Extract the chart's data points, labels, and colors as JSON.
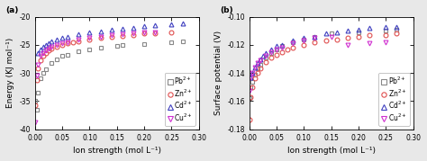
{
  "panel_a": {
    "title": "(a)",
    "xlabel": "Ion strength (mol L⁻¹)",
    "ylabel": "Energy (KJ mol⁻¹)",
    "xlim": [
      0,
      0.3
    ],
    "ylim": [
      -40,
      -20
    ],
    "yticks": [
      -40,
      -35,
      -30,
      -25,
      -20
    ],
    "xticks": [
      0.0,
      0.05,
      0.1,
      0.15,
      0.2,
      0.25,
      0.3
    ],
    "series": {
      "Pb2+": {
        "label": "Pb$^{2+}$",
        "color": "#888888",
        "marker": "s",
        "x": [
          0.001,
          0.003,
          0.005,
          0.01,
          0.015,
          0.02,
          0.03,
          0.04,
          0.05,
          0.06,
          0.08,
          0.1,
          0.12,
          0.15,
          0.16,
          0.2,
          0.25,
          0.27
        ],
        "y": [
          -35.0,
          -36.5,
          -33.5,
          -31.0,
          -30.0,
          -29.3,
          -28.2,
          -27.5,
          -27.0,
          -26.7,
          -26.2,
          -25.8,
          -25.5,
          -25.2,
          -25.0,
          -24.8,
          -24.5,
          -24.4
        ]
      },
      "Zn2+": {
        "label": "Zn$^{2+}$",
        "color": "#e05050",
        "marker": "o",
        "x": [
          0.001,
          0.003,
          0.005,
          0.01,
          0.015,
          0.02,
          0.025,
          0.03,
          0.04,
          0.05,
          0.06,
          0.07,
          0.08,
          0.1,
          0.12,
          0.14,
          0.16,
          0.18,
          0.2,
          0.22,
          0.25
        ],
        "y": [
          -35.8,
          -31.2,
          -29.2,
          -27.8,
          -27.0,
          -26.5,
          -26.0,
          -25.7,
          -25.3,
          -25.0,
          -24.7,
          -24.5,
          -24.3,
          -24.0,
          -23.7,
          -23.5,
          -23.4,
          -23.2,
          -23.0,
          -22.9,
          -22.8
        ]
      },
      "Cd2+": {
        "label": "Cd$^{2+}$",
        "color": "#4040c0",
        "marker": "^",
        "x": [
          0.005,
          0.01,
          0.015,
          0.02,
          0.025,
          0.03,
          0.04,
          0.05,
          0.06,
          0.08,
          0.1,
          0.12,
          0.14,
          0.16,
          0.18,
          0.2,
          0.22,
          0.25,
          0.27
        ],
        "y": [
          -26.5,
          -25.8,
          -25.3,
          -25.0,
          -24.7,
          -24.4,
          -24.0,
          -23.7,
          -23.5,
          -23.1,
          -22.8,
          -22.6,
          -22.3,
          -22.1,
          -21.9,
          -21.7,
          -21.5,
          -21.3,
          -21.2
        ]
      },
      "Cu2+": {
        "label": "Cu$^{2+}$",
        "color": "#d030d0",
        "marker": "v",
        "x": [
          0.001,
          0.003,
          0.005,
          0.01,
          0.015,
          0.02,
          0.025,
          0.03,
          0.04,
          0.05,
          0.06,
          0.08,
          0.1,
          0.12,
          0.14,
          0.16,
          0.18,
          0.2,
          0.22
        ],
        "y": [
          -38.8,
          -30.5,
          -28.5,
          -27.0,
          -26.5,
          -26.0,
          -25.7,
          -25.4,
          -25.0,
          -24.7,
          -24.5,
          -24.1,
          -23.8,
          -23.5,
          -23.3,
          -23.1,
          -23.0,
          -22.8,
          -22.7
        ]
      }
    }
  },
  "panel_b": {
    "title": "(b)",
    "xlabel": "Ion strength (mol L⁻¹)",
    "ylabel": "Surface potential (V)",
    "xlim": [
      0,
      0.3
    ],
    "ylim": [
      -0.18,
      -0.1
    ],
    "yticks": [
      -0.18,
      -0.16,
      -0.14,
      -0.12,
      -0.1
    ],
    "xticks": [
      0.0,
      0.05,
      0.1,
      0.15,
      0.2,
      0.25,
      0.3
    ],
    "series": {
      "Pb2+": {
        "label": "Pb$^{2+}$",
        "color": "#888888",
        "marker": "s",
        "x": [
          0.001,
          0.003,
          0.005,
          0.01,
          0.015,
          0.02,
          0.03,
          0.04,
          0.05,
          0.06,
          0.08,
          0.1,
          0.12,
          0.15,
          0.2,
          0.25,
          0.27
        ],
        "y": [
          -0.158,
          -0.15,
          -0.146,
          -0.141,
          -0.137,
          -0.134,
          -0.129,
          -0.126,
          -0.123,
          -0.121,
          -0.118,
          -0.116,
          -0.114,
          -0.112,
          -0.111,
          -0.11,
          -0.109
        ]
      },
      "Zn2+": {
        "label": "Zn$^{2+}$",
        "color": "#e05050",
        "marker": "o",
        "x": [
          0.001,
          0.003,
          0.005,
          0.01,
          0.015,
          0.02,
          0.03,
          0.04,
          0.05,
          0.06,
          0.07,
          0.08,
          0.1,
          0.12,
          0.14,
          0.16,
          0.18,
          0.2,
          0.22,
          0.25,
          0.27
        ],
        "y": [
          -0.173,
          -0.157,
          -0.15,
          -0.144,
          -0.14,
          -0.137,
          -0.132,
          -0.129,
          -0.127,
          -0.125,
          -0.123,
          -0.122,
          -0.12,
          -0.118,
          -0.117,
          -0.116,
          -0.115,
          -0.114,
          -0.113,
          -0.113,
          -0.112
        ]
      },
      "Cd2+": {
        "label": "Cd$^{2+}$",
        "color": "#4040c0",
        "marker": "^",
        "x": [
          0.003,
          0.005,
          0.01,
          0.015,
          0.02,
          0.025,
          0.03,
          0.04,
          0.05,
          0.06,
          0.08,
          0.1,
          0.12,
          0.14,
          0.16,
          0.18,
          0.2,
          0.22,
          0.25,
          0.27
        ],
        "y": [
          -0.143,
          -0.14,
          -0.136,
          -0.133,
          -0.13,
          -0.128,
          -0.126,
          -0.123,
          -0.121,
          -0.12,
          -0.117,
          -0.115,
          -0.114,
          -0.112,
          -0.111,
          -0.11,
          -0.109,
          -0.108,
          -0.107,
          -0.107
        ]
      },
      "Cu2+": {
        "label": "Cu$^{2+}$",
        "color": "#d030d0",
        "marker": "v",
        "x": [
          0.001,
          0.003,
          0.005,
          0.01,
          0.015,
          0.02,
          0.03,
          0.04,
          0.05,
          0.06,
          0.08,
          0.1,
          0.12,
          0.15,
          0.18,
          0.22,
          0.25
        ],
        "y": [
          -0.153,
          -0.143,
          -0.14,
          -0.136,
          -0.133,
          -0.131,
          -0.128,
          -0.125,
          -0.123,
          -0.122,
          -0.119,
          -0.117,
          -0.115,
          -0.114,
          -0.12,
          -0.119,
          -0.118
        ]
      }
    }
  },
  "background_color": "#ffffff",
  "fig_background": "#e8e8e8",
  "marker_size": 3.5,
  "marker_facecolor": "none",
  "linewidth": 0,
  "legend_fontsize": 5.5,
  "axis_fontsize": 6.5,
  "tick_fontsize": 5.5,
  "label_fontsize": 6.5
}
